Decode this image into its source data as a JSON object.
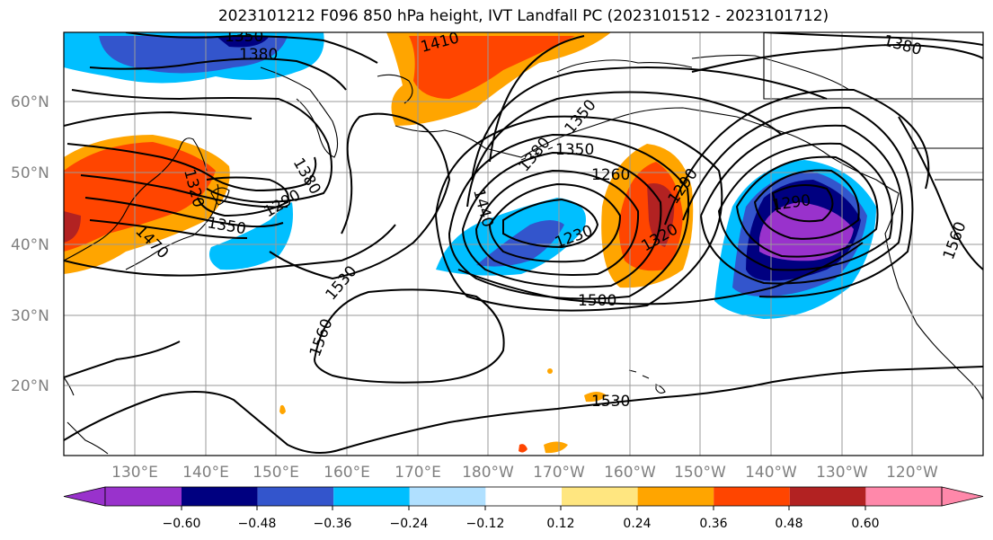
{
  "title": "2023101212 F096 850 hPa height, IVT Landfall PC (2023101512 - 2023101712)",
  "map": {
    "lat_labels": [
      "60°N",
      "50°N",
      "40°N",
      "30°N",
      "20°N"
    ],
    "lon_labels": [
      "130°E",
      "140°E",
      "150°E",
      "160°E",
      "170°E",
      "180°W",
      "170°W",
      "160°W",
      "150°W",
      "140°W",
      "130°W",
      "120°W"
    ],
    "contour_labels": [
      "1350",
      "1380",
      "1410",
      "1380",
      "1350",
      "1380",
      "1320",
      "1350",
      "1290",
      "1470",
      "1530",
      "1560",
      "1440",
      "1380",
      "1350",
      "1260",
      "1290",
      "1290",
      "1230",
      "1320",
      "1500",
      "1560",
      "1530"
    ],
    "fill_colors": {
      "purple": "#9932cc",
      "navy": "#000080",
      "blue": "#3355cc",
      "deepskyblue": "#00bfff",
      "lightblue": "#b0e0ff",
      "yellow": "#ffe680",
      "orange": "#ffa500",
      "orangered": "#ff4500",
      "firebrick": "#b22222",
      "pink": "#ff88aa"
    }
  },
  "colorbar": {
    "ticks": [
      "−0.60",
      "−0.48",
      "−0.36",
      "−0.24",
      "−0.12",
      "0.12",
      "0.24",
      "0.36",
      "0.48",
      "0.60"
    ],
    "colors": [
      "#9932cc",
      "#000080",
      "#3355cc",
      "#00bfff",
      "#b0e0ff",
      "#ffffff",
      "#ffe680",
      "#ffa500",
      "#ff4500",
      "#b22222",
      "#ff88aa"
    ]
  }
}
